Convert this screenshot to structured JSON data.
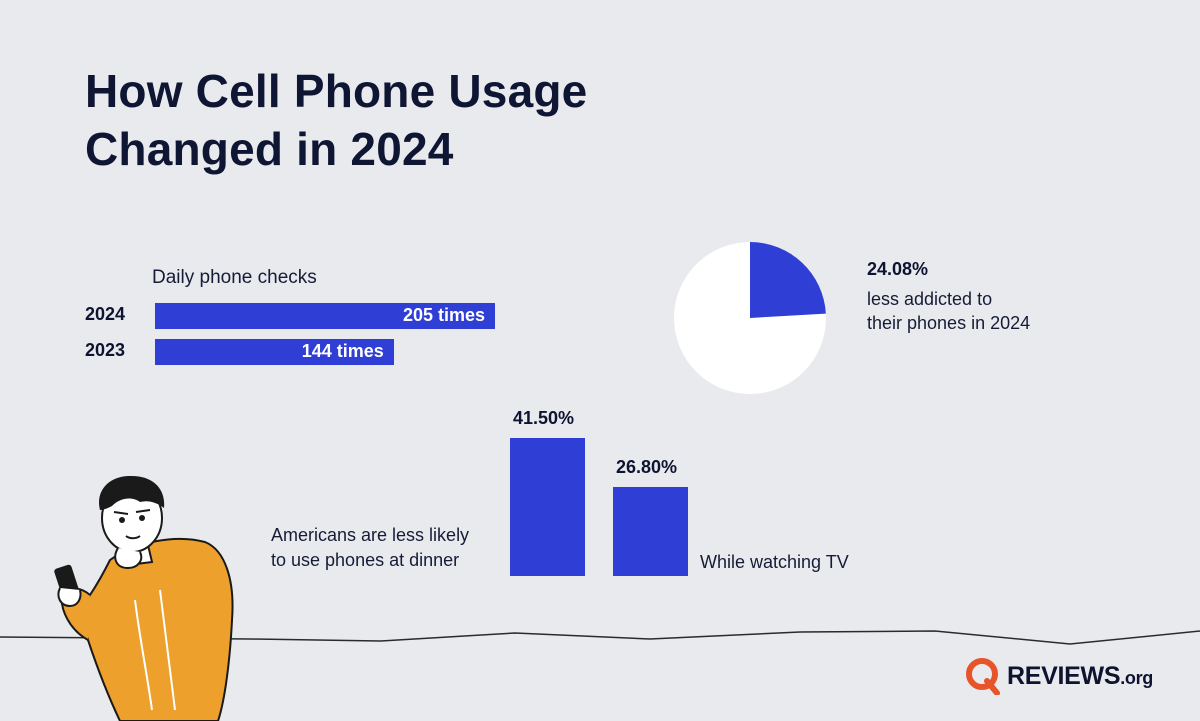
{
  "title": {
    "line1": "How Cell Phone Usage",
    "line2": "Changed in 2024"
  },
  "chart_data": [
    {
      "type": "bar",
      "orientation": "horizontal",
      "title": "Daily phone checks",
      "categories": [
        "2024",
        "2023"
      ],
      "values": [
        205,
        144
      ],
      "value_labels": [
        "205 times",
        "144 times"
      ],
      "xlim": [
        0,
        205
      ]
    },
    {
      "type": "pie",
      "values": [
        24.08,
        75.92
      ],
      "value_label": "24.08%",
      "caption_line1": "less addicted to",
      "caption_line2": "their phones in 2024",
      "colors": [
        "#2f3fd6",
        "#ffffff"
      ]
    },
    {
      "type": "bar",
      "orientation": "vertical",
      "values": [
        41.5,
        26.8
      ],
      "value_labels": [
        "41.50%",
        "26.80%"
      ],
      "caption_left_line1": "Americans are less likely",
      "caption_left_line2": "to use phones at dinner",
      "caption_right": "While watching TV",
      "ylim": [
        0,
        41.5
      ]
    }
  ],
  "logo": {
    "word": "REVIEWS",
    "suffix": ".org",
    "icon": "reviews-q-logo-icon"
  },
  "illustration": "person-holding-phone",
  "colors": {
    "background": "#e9eaee",
    "bar": "#2f3fd6",
    "title": "#0f1634",
    "accent": "#e8542a",
    "sweater": "#eea02c"
  }
}
